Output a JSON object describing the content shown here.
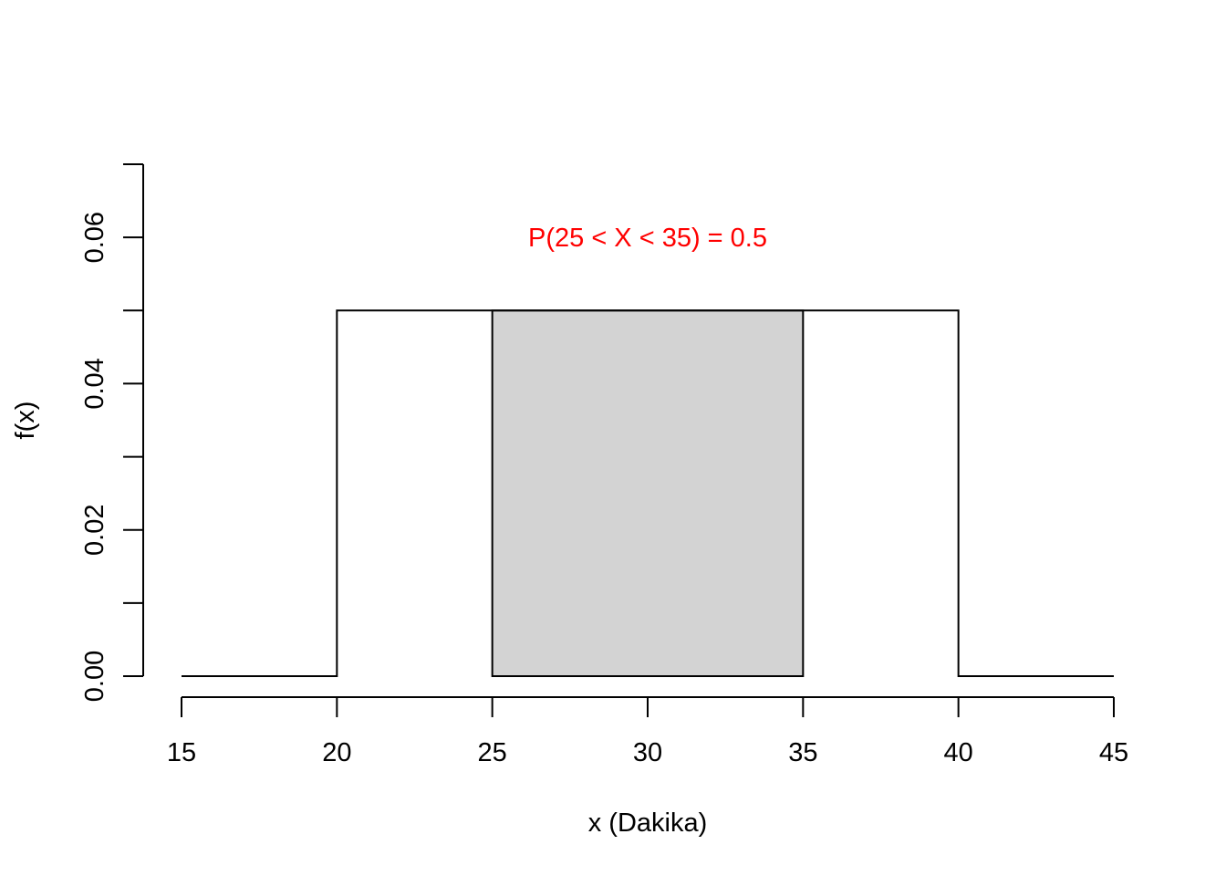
{
  "chart_data": {
    "type": "line",
    "title": "",
    "xlabel": "x (Dakika)",
    "ylabel": "f(x)",
    "xlim": [
      15,
      45
    ],
    "ylim": [
      0,
      0.07
    ],
    "x_ticks": [
      "15",
      "20",
      "25",
      "30",
      "35",
      "40",
      "45"
    ],
    "y_ticks": [
      "0.00",
      "0.02",
      "0.04",
      "0.06"
    ],
    "x_tick_values": [
      15,
      20,
      25,
      30,
      35,
      40,
      45
    ],
    "y_tick_values": [
      0,
      0.01,
      0.02,
      0.03,
      0.04,
      0.05,
      0.06,
      0.07
    ],
    "y_label_values": [
      0,
      0.02,
      0.04,
      0.06
    ],
    "series": [
      {
        "x": [
          15,
          20,
          20,
          40,
          40,
          45
        ],
        "y": [
          0,
          0,
          0.05,
          0.05,
          0,
          0
        ]
      }
    ],
    "shaded_region": {
      "x_from": 25,
      "x_to": 35,
      "y": 0.05,
      "fill": "#d3d3d3"
    },
    "annotation": {
      "text": "P(25 < X < 35) = 0.5",
      "x": 30,
      "y": 0.06,
      "color": "#ff0000"
    },
    "grid": false,
    "line_color": "#000000"
  }
}
